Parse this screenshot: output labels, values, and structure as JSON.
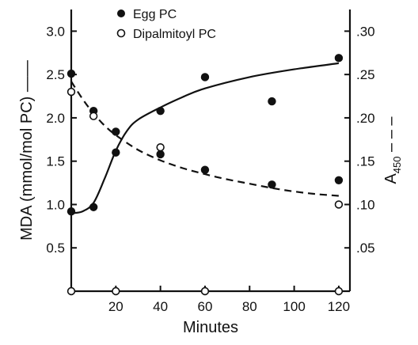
{
  "chart_data": {
    "type": "scatter",
    "x_axis": {
      "label": "Minutes",
      "range": [
        0,
        125
      ],
      "ticks": [
        20,
        40,
        60,
        80,
        100,
        120
      ],
      "tick_labels": [
        "20",
        "40",
        "60",
        "80",
        "100",
        "120"
      ]
    },
    "y_left": {
      "label": "MDA (mmol/mol PC) ——",
      "range": [
        0,
        3.25
      ],
      "ticks": [
        0.5,
        1.0,
        1.5,
        2.0,
        2.5,
        3.0
      ],
      "tick_labels": [
        "0.5",
        "1.0",
        "1.5",
        "2.0",
        "2.5",
        "3.0"
      ]
    },
    "y_right": {
      "label_main": "A",
      "label_sub": "450",
      "label_suffix": " – – –",
      "range": [
        0,
        0.325
      ],
      "ticks": [
        0.05,
        0.1,
        0.15,
        0.2,
        0.25,
        0.3
      ],
      "tick_labels": [
        ".05",
        ".10",
        ".15",
        ".20",
        ".25",
        ".30"
      ]
    },
    "legend": [
      {
        "label": "Egg PC",
        "marker": "filled-circle"
      },
      {
        "label": "Dipalmitoyl PC",
        "marker": "open-circle"
      }
    ],
    "series": [
      {
        "name": "Egg PC",
        "marker": "filled-circle",
        "points": [
          [
            0,
            0.92
          ],
          [
            0,
            2.51
          ],
          [
            10,
            0.97
          ],
          [
            10,
            2.08
          ],
          [
            20,
            1.6
          ],
          [
            20,
            1.84
          ],
          [
            40,
            2.08
          ],
          [
            40,
            1.58
          ],
          [
            60,
            2.47
          ],
          [
            60,
            1.4
          ],
          [
            90,
            2.19
          ],
          [
            90,
            1.23
          ],
          [
            120,
            2.69
          ],
          [
            120,
            1.28
          ]
        ]
      },
      {
        "name": "Dipalmitoyl PC",
        "marker": "open-circle",
        "points": [
          [
            0,
            2.3
          ],
          [
            10,
            2.02
          ],
          [
            40,
            1.66
          ],
          [
            120,
            1.0
          ],
          [
            0,
            0
          ],
          [
            20,
            0
          ],
          [
            60,
            0
          ],
          [
            120,
            0
          ]
        ]
      }
    ],
    "curves": [
      {
        "style": "solid",
        "axis": "left",
        "points": [
          [
            0,
            0.9
          ],
          [
            5,
            0.92
          ],
          [
            10,
            1.02
          ],
          [
            15,
            1.3
          ],
          [
            20,
            1.62
          ],
          [
            25,
            1.85
          ],
          [
            30,
            1.98
          ],
          [
            40,
            2.12
          ],
          [
            50,
            2.24
          ],
          [
            60,
            2.34
          ],
          [
            80,
            2.47
          ],
          [
            100,
            2.56
          ],
          [
            120,
            2.63
          ]
        ]
      },
      {
        "style": "dashed",
        "axis": "right",
        "points": [
          [
            0,
            0.242
          ],
          [
            5,
            0.222
          ],
          [
            10,
            0.205
          ],
          [
            15,
            0.191
          ],
          [
            20,
            0.18
          ],
          [
            30,
            0.163
          ],
          [
            40,
            0.151
          ],
          [
            50,
            0.142
          ],
          [
            60,
            0.135
          ],
          [
            70,
            0.129
          ],
          [
            80,
            0.124
          ],
          [
            90,
            0.119
          ],
          [
            100,
            0.115
          ],
          [
            110,
            0.112
          ],
          [
            120,
            0.11
          ]
        ]
      }
    ]
  }
}
